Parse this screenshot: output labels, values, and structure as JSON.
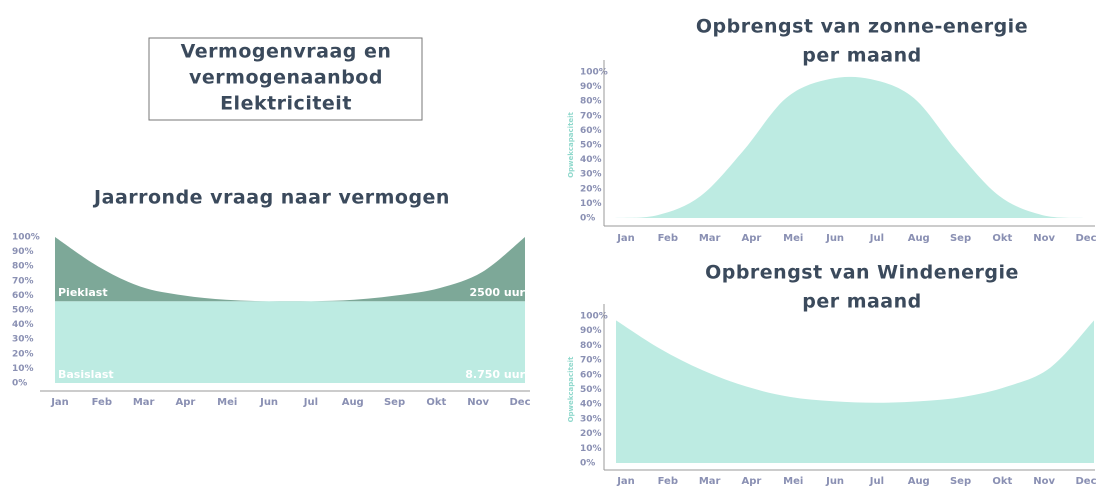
{
  "title": [
    "Vermogenvraag en",
    "vermogenaanbod",
    "Elektriciteit"
  ],
  "chart_data": [
    {
      "type": "stacked-area",
      "title": [
        "Jaarronde vraag naar vermogen"
      ],
      "categories": [
        "Jan",
        "Feb",
        "Mar",
        "Apr",
        "Mei",
        "Jun",
        "Jul",
        "Aug",
        "Sep",
        "Okt",
        "Nov",
        "Dec"
      ],
      "series": [
        {
          "name": "Basislast",
          "note": "8.750 uur",
          "color": "#bdebe2",
          "values": [
            56,
            56,
            56,
            56,
            56,
            56,
            56,
            56,
            56,
            56,
            56,
            56
          ]
        },
        {
          "name": "Pieklast",
          "note": "2500 uur",
          "color": "#7da898",
          "values": [
            44,
            24,
            10,
            4,
            1,
            0,
            0,
            1,
            4,
            9,
            20,
            44
          ]
        }
      ],
      "ylim": [
        0,
        100
      ],
      "yticks": [
        {
          "value": 0,
          "label": "0%"
        },
        {
          "value": 10,
          "label": "10%"
        },
        {
          "value": 20,
          "label": "20%"
        },
        {
          "value": 30,
          "label": "30%"
        },
        {
          "value": 40,
          "label": "40%"
        },
        {
          "value": 50,
          "label": "50%"
        },
        {
          "value": 60,
          "label": "60%"
        },
        {
          "value": 70,
          "label": "70%"
        },
        {
          "value": 80,
          "label": "80%"
        },
        {
          "value": 90,
          "label": "90%"
        },
        {
          "value": 100,
          "label": "100%"
        }
      ],
      "grid": false
    },
    {
      "type": "area",
      "title": [
        "Opbrengst van zonne-energie",
        "per maand"
      ],
      "ylabel": "Opwekcapaciteit",
      "categories": [
        "Jan",
        "Feb",
        "Mar",
        "Apr",
        "Mei",
        "Jun",
        "Jul",
        "Aug",
        "Sep",
        "Okt",
        "Nov",
        "Dec"
      ],
      "values": [
        0,
        2,
        15,
        46,
        82,
        95,
        95,
        82,
        46,
        15,
        2,
        0
      ],
      "color": "#bdebe2",
      "ylim": [
        0,
        100
      ],
      "yticks": [
        {
          "value": 0,
          "label": "0%"
        },
        {
          "value": 10,
          "label": "10%"
        },
        {
          "value": 20,
          "label": "20%"
        },
        {
          "value": 30,
          "label": "30%"
        },
        {
          "value": 40,
          "label": "40%"
        },
        {
          "value": 50,
          "label": "50%"
        },
        {
          "value": 60,
          "label": "60%"
        },
        {
          "value": 70,
          "label": "70%"
        },
        {
          "value": 80,
          "label": "80%"
        },
        {
          "value": 90,
          "label": "90%"
        },
        {
          "value": 100,
          "label": "100%"
        }
      ],
      "grid": false
    },
    {
      "type": "area",
      "title": [
        "Opbrengst van Windenergie",
        "per maand"
      ],
      "ylabel": "Opwekcapaciteit",
      "categories": [
        "Jan",
        "Feb",
        "Mar",
        "Apr",
        "Mei",
        "Jun",
        "Jul",
        "Aug",
        "Sep",
        "Okt",
        "Nov",
        "Dec"
      ],
      "values": [
        97,
        78,
        63,
        52,
        45,
        42,
        41,
        42,
        45,
        52,
        65,
        97
      ],
      "color": "#bdebe2",
      "ylim": [
        0,
        100
      ],
      "yticks": [
        {
          "value": 0,
          "label": "0%"
        },
        {
          "value": 10,
          "label": "10%"
        },
        {
          "value": 20,
          "label": "20%"
        },
        {
          "value": 30,
          "label": "30%"
        },
        {
          "value": 40,
          "label": "40%"
        },
        {
          "value": 50,
          "label": "50%"
        },
        {
          "value": 60,
          "label": "60%"
        },
        {
          "value": 70,
          "label": "70%"
        },
        {
          "value": 80,
          "label": "80%"
        },
        {
          "value": 90,
          "label": "90%"
        },
        {
          "value": 100,
          "label": "100%"
        }
      ],
      "grid": false
    }
  ]
}
